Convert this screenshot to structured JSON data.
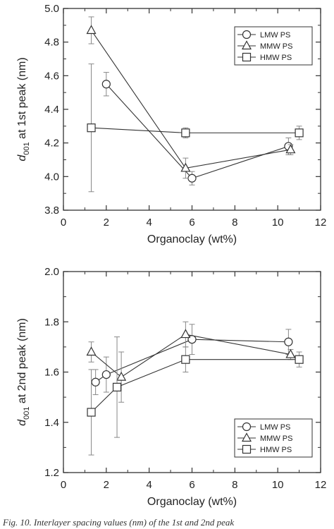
{
  "chart_data": [
    {
      "type": "scatter",
      "title": "",
      "xlabel": "Organoclay (wt%)",
      "ylabel_main": "d",
      "ylabel_sub": "001",
      "ylabel_rest": " at 1st peak (nm)",
      "xlim": [
        0,
        12
      ],
      "ylim": [
        3.8,
        5.0
      ],
      "x_ticks": [
        0,
        2,
        4,
        6,
        8,
        10,
        12
      ],
      "x_tick_labels": [
        "0",
        "2",
        "4",
        "6",
        "8",
        "10",
        "12"
      ],
      "y_ticks": [
        3.8,
        4.0,
        4.2,
        4.4,
        4.6,
        4.8,
        5.0
      ],
      "y_tick_labels": [
        "3.8",
        "4.0",
        "4.2",
        "4.4",
        "4.6",
        "4.8",
        "5.0"
      ],
      "grid": false,
      "legend_position": "top-right",
      "series": [
        {
          "name": "LMW PS",
          "marker": "circle",
          "x": [
            2.0,
            6.0,
            10.5
          ],
          "y": [
            4.55,
            3.99,
            4.18
          ],
          "err": [
            0.07,
            0.04,
            0.05
          ]
        },
        {
          "name": "MMW PS",
          "marker": "triangle",
          "x": [
            1.3,
            5.7,
            10.6
          ],
          "y": [
            4.87,
            4.05,
            4.16
          ],
          "err": [
            0.08,
            0.06,
            0.03
          ]
        },
        {
          "name": "HMW PS",
          "marker": "square",
          "x": [
            1.3,
            5.7,
            11.0
          ],
          "y": [
            4.29,
            4.26,
            4.26
          ],
          "err": [
            0.38,
            0.03,
            0.04
          ]
        }
      ]
    },
    {
      "type": "scatter",
      "title": "",
      "xlabel": "Organoclay (wt%)",
      "ylabel_main": "d",
      "ylabel_sub": "001",
      "ylabel_rest": " at 2nd peak (nm)",
      "xlim": [
        0,
        12
      ],
      "ylim": [
        1.2,
        2.0
      ],
      "x_ticks": [
        0,
        2,
        4,
        6,
        8,
        10,
        12
      ],
      "x_tick_labels": [
        "0",
        "2",
        "4",
        "6",
        "8",
        "10",
        "12"
      ],
      "y_ticks": [
        1.2,
        1.4,
        1.6,
        1.8,
        2.0
      ],
      "y_tick_labels": [
        "1.2",
        "1.4",
        "1.6",
        "1.8",
        "2.0"
      ],
      "grid": false,
      "legend_position": "bottom-right",
      "series": [
        {
          "name": "LMW PS",
          "marker": "circle",
          "x": [
            1.5,
            2.0,
            6.0,
            10.5
          ],
          "y": [
            1.56,
            1.59,
            1.73,
            1.72
          ],
          "err": [
            0.05,
            0.07,
            0.06,
            0.05
          ]
        },
        {
          "name": "MMW PS",
          "marker": "triangle",
          "x": [
            1.3,
            2.7,
            5.7,
            10.6
          ],
          "y": [
            1.68,
            1.58,
            1.75,
            1.67
          ],
          "err": [
            0.04,
            0.1,
            0.05,
            0.02
          ]
        },
        {
          "name": "HMW PS",
          "marker": "square",
          "x": [
            1.3,
            2.5,
            5.7,
            11.0
          ],
          "y": [
            1.44,
            1.54,
            1.65,
            1.65
          ],
          "err": [
            0.17,
            0.2,
            0.05,
            0.03
          ]
        }
      ]
    }
  ],
  "caption": "Fig. 10. Interlayer spacing values (nm) of the 1st and 2nd peak"
}
